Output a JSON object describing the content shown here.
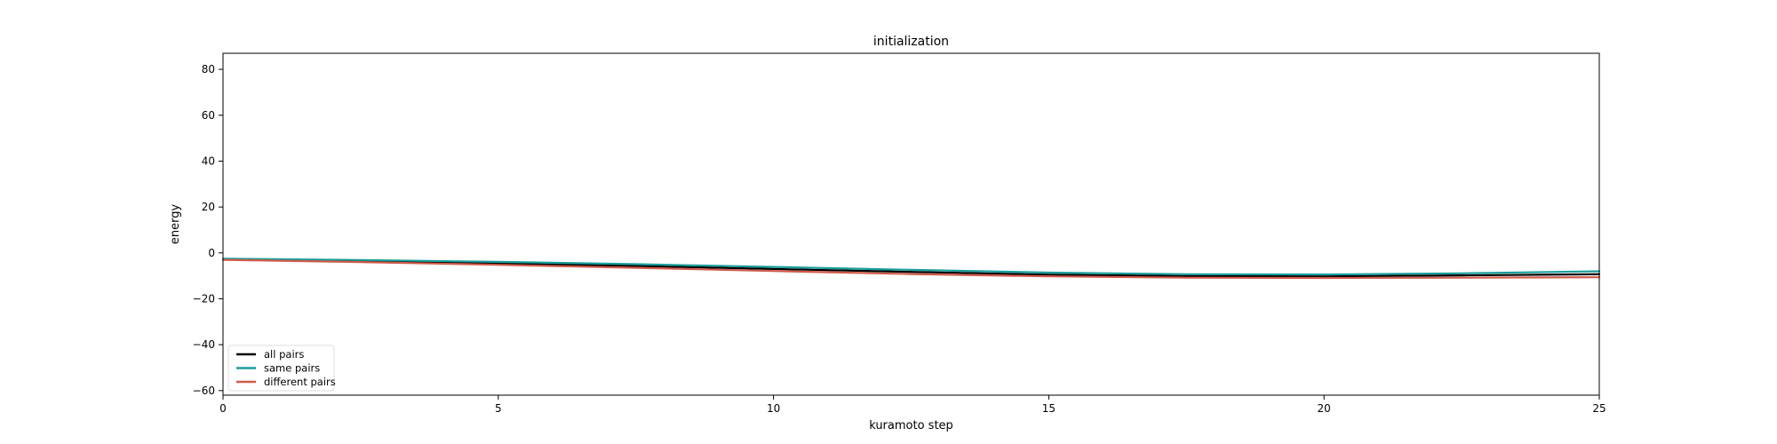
{
  "chart_data": {
    "type": "line",
    "title": "initialization",
    "xlabel": "kuramoto step",
    "ylabel": "energy",
    "xlim": [
      0,
      25
    ],
    "ylim": [
      -62,
      87
    ],
    "xticks": [
      0,
      5,
      10,
      15,
      20,
      25
    ],
    "yticks": [
      -60,
      -40,
      -20,
      0,
      20,
      40,
      60,
      80
    ],
    "grid": false,
    "legend_position": "lower-left",
    "x": [
      0,
      2.5,
      5,
      7.5,
      10,
      12.5,
      15,
      17.5,
      20,
      22.5,
      25
    ],
    "series": [
      {
        "name": "all pairs",
        "color": "#000000",
        "values": [
          -2.8,
          -3.6,
          -4.6,
          -5.7,
          -7.0,
          -8.3,
          -9.5,
          -10.1,
          -10.2,
          -9.8,
          -9.3
        ]
      },
      {
        "name": "same pairs",
        "color": "#1a9e9a",
        "values": [
          -2.5,
          -3.1,
          -3.9,
          -4.9,
          -6.1,
          -7.4,
          -8.6,
          -9.3,
          -9.4,
          -8.9,
          -8.0
        ]
      },
      {
        "name": "different pairs",
        "color": "#d05a4a",
        "values": [
          -3.0,
          -4.0,
          -5.2,
          -6.5,
          -7.9,
          -9.2,
          -10.2,
          -10.8,
          -10.9,
          -10.8,
          -10.6
        ]
      }
    ]
  }
}
